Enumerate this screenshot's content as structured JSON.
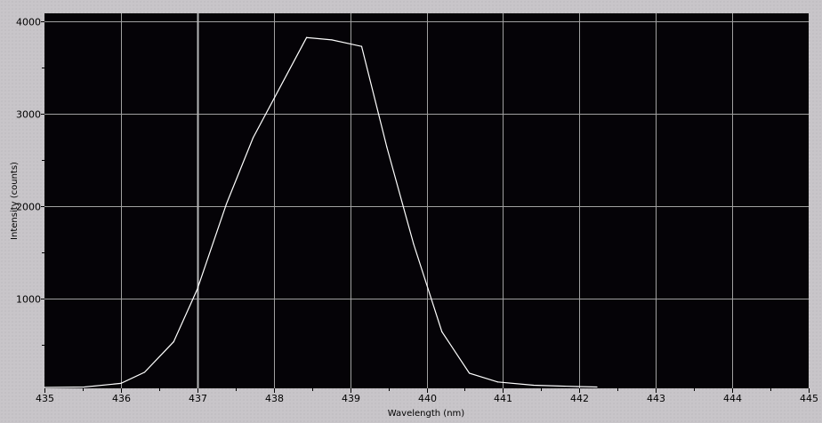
{
  "chart_data": {
    "type": "line",
    "title": "",
    "xlabel": "Wavelength (nm)",
    "ylabel": "Intensity (counts)",
    "xlim": [
      435,
      445
    ],
    "ylim": [
      0,
      4000
    ],
    "xticks": [
      "435",
      "436",
      "437",
      "438",
      "439",
      "440",
      "441",
      "442",
      "443",
      "444",
      "445"
    ],
    "yticks": [
      "1000",
      "2000",
      "3000",
      "4000"
    ],
    "grid": true,
    "cursor_x": 437,
    "colors": {
      "plot_bg": "#050307",
      "line": "#ffffff",
      "grid": "#a0a0a0",
      "cursor": "#b4b4b4"
    },
    "series": [
      {
        "x": [
          435.0,
          435.52,
          436.0,
          436.31,
          436.69,
          437.0,
          437.38,
          437.73,
          438.43,
          438.76,
          439.15,
          439.48,
          439.83,
          440.2,
          440.56,
          440.93,
          441.4,
          441.97,
          442.23
        ],
        "y": [
          25,
          40,
          80,
          200,
          530,
          1100,
          2020,
          2740,
          3825,
          3800,
          3730,
          2640,
          1590,
          640,
          190,
          95,
          60,
          45,
          40
        ]
      }
    ]
  }
}
